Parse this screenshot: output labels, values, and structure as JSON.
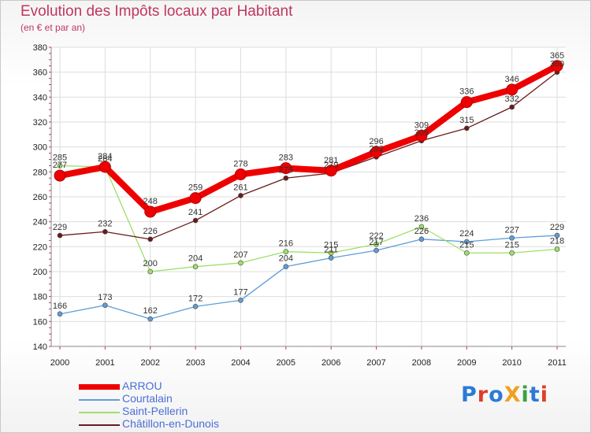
{
  "header": {
    "title": "Evolution des Impôts locaux par Habitant",
    "subtitle": "(en € et par an)"
  },
  "logo": {
    "text": "ProXiti"
  },
  "colors": {
    "ARROU": "#ee0000",
    "Courtalain": "#5e9ed6",
    "Saint-Pellerin": "#9ee06a",
    "Châtillon-en-Dunois": "#6b1a1a"
  },
  "chart_data": {
    "type": "line",
    "title": "Evolution des Impôts locaux par Habitant",
    "subtitle": "(en € et par an)",
    "xlabel": "",
    "ylabel": "",
    "x": [
      "2000",
      "2001",
      "2002",
      "2003",
      "2004",
      "2005",
      "2006",
      "2007",
      "2008",
      "2009",
      "2010",
      "2011"
    ],
    "ylim": [
      140,
      380
    ],
    "yticks": [
      140,
      160,
      180,
      200,
      220,
      240,
      260,
      280,
      300,
      320,
      340,
      360,
      380
    ],
    "grid": true,
    "legend_position": "bottom-left",
    "series": [
      {
        "name": "Courtalain",
        "values": [
          166,
          173,
          162,
          172,
          177,
          204,
          211,
          217,
          226,
          224,
          227,
          229
        ]
      },
      {
        "name": "Saint-Pellerin",
        "values": [
          285,
          284,
          200,
          204,
          207,
          216,
          215,
          222,
          236,
          215,
          215,
          218
        ]
      },
      {
        "name": "Châtillon-en-Dunois",
        "values": [
          229,
          232,
          226,
          241,
          261,
          275,
          279,
          292,
          305,
          315,
          332,
          360
        ]
      },
      {
        "name": "ARROU",
        "values": [
          277,
          284,
          248,
          259,
          278,
          283,
          281,
          296,
          309,
          336,
          346,
          365
        ]
      }
    ]
  }
}
